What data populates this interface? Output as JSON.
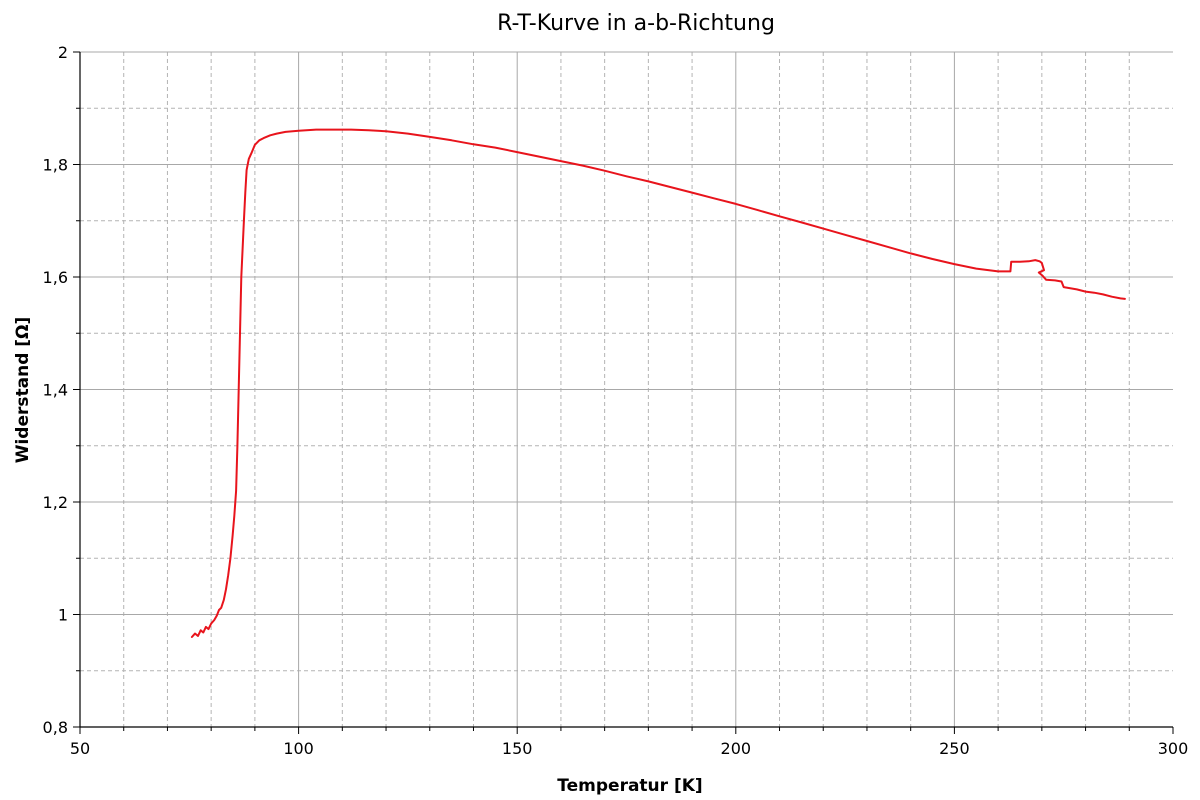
{
  "chart_data": {
    "type": "line",
    "title": "R-T-Kurve in a-b-Richtung",
    "xlabel": "Temperatur [K]",
    "ylabel": "Widerstand [Ω]",
    "xlim": [
      50,
      300
    ],
    "ylim": [
      0.8,
      2.0
    ],
    "x_major_ticks": [
      50,
      100,
      150,
      200,
      250,
      300
    ],
    "x_tick_labels": [
      "50",
      "100",
      "150",
      "200",
      "250",
      "300"
    ],
    "x_minor_step": 10,
    "y_major_ticks": [
      0.8,
      1.0,
      1.2,
      1.4,
      1.6,
      1.8,
      2.0
    ],
    "y_tick_labels": [
      "0,8",
      "1",
      "1,2",
      "1,4",
      "1,6",
      "1,8",
      "2"
    ],
    "y_minor_step": 0.1,
    "grid": true,
    "series": [
      {
        "color": "#e8141c",
        "points": [
          [
            75.6,
            0.96
          ],
          [
            76.3,
            0.966
          ],
          [
            77.0,
            0.962
          ],
          [
            77.6,
            0.972
          ],
          [
            78.2,
            0.968
          ],
          [
            78.8,
            0.978
          ],
          [
            79.4,
            0.974
          ],
          [
            80.0,
            0.984
          ],
          [
            80.7,
            0.99
          ],
          [
            81.3,
            0.998
          ],
          [
            81.8,
            1.008
          ],
          [
            82.3,
            1.012
          ],
          [
            82.9,
            1.026
          ],
          [
            83.4,
            1.045
          ],
          [
            83.9,
            1.07
          ],
          [
            84.4,
            1.1
          ],
          [
            84.9,
            1.14
          ],
          [
            85.3,
            1.175
          ],
          [
            85.7,
            1.22
          ],
          [
            86.0,
            1.3
          ],
          [
            86.3,
            1.4
          ],
          [
            86.6,
            1.5
          ],
          [
            86.9,
            1.6
          ],
          [
            87.2,
            1.65
          ],
          [
            87.5,
            1.7
          ],
          [
            87.8,
            1.75
          ],
          [
            88.1,
            1.79
          ],
          [
            88.6,
            1.81
          ],
          [
            89.2,
            1.82
          ],
          [
            90.0,
            1.835
          ],
          [
            91.0,
            1.843
          ],
          [
            92.0,
            1.847
          ],
          [
            93.5,
            1.852
          ],
          [
            95.0,
            1.855
          ],
          [
            97.0,
            1.858
          ],
          [
            100.0,
            1.86
          ],
          [
            104.0,
            1.862
          ],
          [
            108.0,
            1.862
          ],
          [
            112.0,
            1.862
          ],
          [
            116.0,
            1.861
          ],
          [
            120.0,
            1.859
          ],
          [
            125.0,
            1.855
          ],
          [
            130.0,
            1.849
          ],
          [
            135.0,
            1.843
          ],
          [
            140.0,
            1.836
          ],
          [
            145.0,
            1.83
          ],
          [
            150.0,
            1.822
          ],
          [
            155.0,
            1.814
          ],
          [
            160.0,
            1.806
          ],
          [
            165.0,
            1.798
          ],
          [
            170.0,
            1.789
          ],
          [
            175.0,
            1.779
          ],
          [
            180.0,
            1.77
          ],
          [
            185.0,
            1.76
          ],
          [
            190.0,
            1.75
          ],
          [
            195.0,
            1.74
          ],
          [
            200.0,
            1.73
          ],
          [
            205.0,
            1.719
          ],
          [
            210.0,
            1.708
          ],
          [
            215.0,
            1.697
          ],
          [
            220.0,
            1.686
          ],
          [
            225.0,
            1.675
          ],
          [
            230.0,
            1.664
          ],
          [
            235.0,
            1.653
          ],
          [
            240.0,
            1.642
          ],
          [
            245.0,
            1.632
          ],
          [
            250.0,
            1.623
          ],
          [
            255.0,
            1.615
          ],
          [
            260.0,
            1.61
          ],
          [
            262.8,
            1.61
          ],
          [
            263.0,
            1.627
          ],
          [
            265.0,
            1.627
          ],
          [
            267.0,
            1.628
          ],
          [
            268.5,
            1.63
          ],
          [
            269.5,
            1.628
          ],
          [
            270.0,
            1.625
          ],
          [
            270.5,
            1.612
          ],
          [
            269.3,
            1.608
          ],
          [
            270.2,
            1.602
          ],
          [
            271.0,
            1.595
          ],
          [
            273.0,
            1.594
          ],
          [
            274.5,
            1.592
          ],
          [
            275.0,
            1.582
          ],
          [
            278.0,
            1.578
          ],
          [
            280.0,
            1.574
          ],
          [
            282.0,
            1.572
          ],
          [
            284.0,
            1.569
          ],
          [
            286.0,
            1.565
          ],
          [
            288.0,
            1.562
          ],
          [
            289.0,
            1.561
          ]
        ]
      }
    ]
  }
}
